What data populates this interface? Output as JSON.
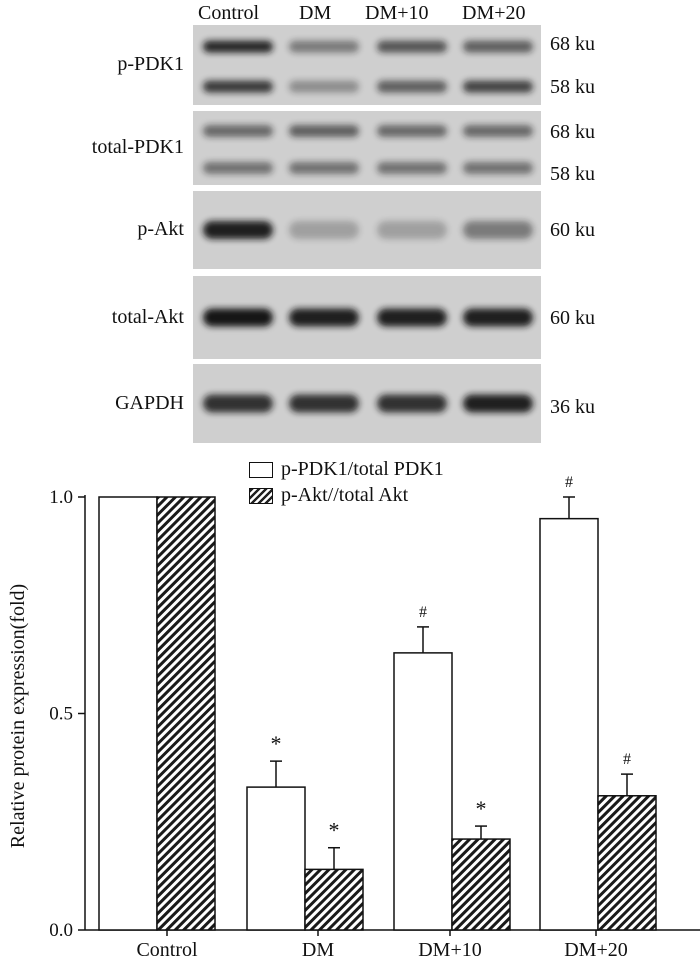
{
  "blot": {
    "lanes": [
      "Control",
      "DM",
      "DM+10",
      "DM+20"
    ],
    "panels": [
      {
        "name": "p-PDK1",
        "sizes": [
          "68 ku",
          "58 ku"
        ],
        "bands": [
          [
            0.9,
            0.8
          ],
          [
            0.45,
            0.35
          ],
          [
            0.65,
            0.6
          ],
          [
            0.6,
            0.75
          ]
        ]
      },
      {
        "name": "total-PDK1",
        "sizes": [
          "68 ku",
          "58 ku"
        ],
        "bands": [
          [
            0.55,
            0.5
          ],
          [
            0.6,
            0.5
          ],
          [
            0.55,
            0.5
          ],
          [
            0.55,
            0.5
          ]
        ]
      },
      {
        "name": "p-Akt",
        "sizes": [
          "60 ku"
        ],
        "bands": [
          [
            0.95
          ],
          [
            0.25
          ],
          [
            0.25
          ],
          [
            0.45
          ]
        ]
      },
      {
        "name": "total-Akt",
        "sizes": [
          "60 ku"
        ],
        "bands": [
          [
            1.0
          ],
          [
            0.95
          ],
          [
            0.95
          ],
          [
            0.95
          ]
        ]
      },
      {
        "name": "GAPDH",
        "sizes": [
          "36 ku"
        ],
        "bands": [
          [
            0.85
          ],
          [
            0.85
          ],
          [
            0.85
          ],
          [
            0.95
          ]
        ]
      }
    ]
  },
  "chart_data": {
    "type": "bar",
    "categories": [
      "Control",
      "DM",
      "DM+10",
      "DM+20"
    ],
    "series": [
      {
        "name": "p-PDK1/total PDK1",
        "fill": "open",
        "values": [
          1.0,
          0.33,
          0.64,
          0.95
        ],
        "errors": [
          0,
          0.06,
          0.06,
          0.05
        ],
        "annotations": [
          "",
          "*",
          "#",
          "#"
        ]
      },
      {
        "name": "p-Akt//total Akt",
        "fill": "hatched",
        "values": [
          1.0,
          0.14,
          0.21,
          0.31
        ],
        "errors": [
          0,
          0.05,
          0.03,
          0.05
        ],
        "annotations": [
          "",
          "*",
          "*",
          "#"
        ]
      }
    ],
    "ylabel": "Relative protein expression(fold)",
    "ylim": [
      0,
      1.0
    ],
    "yticks": [
      "0.0",
      "0.5",
      "1.0"
    ],
    "legend_position": "top-center",
    "grid": false
  }
}
